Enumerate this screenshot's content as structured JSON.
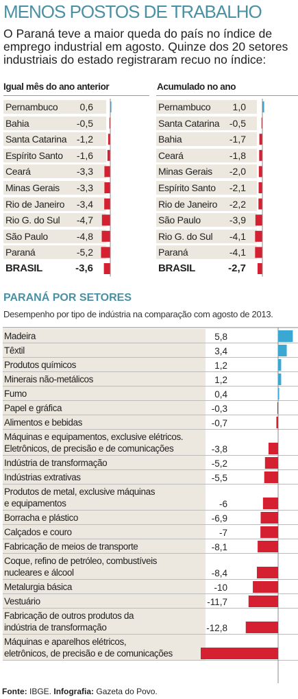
{
  "header": {
    "title": "MENOS POSTOS DE TRABALHO",
    "intro": "O Paraná teve a maior queda do país no índice de emprego industrial em agosto. Quinze dos 20 setores industriais do estado registraram recuo no índice:"
  },
  "colors": {
    "positive": "#3ba7d3",
    "negative": "#d42031",
    "accent": "#4a90a4",
    "shade": "#ece8df"
  },
  "chart_data": [
    {
      "type": "bar",
      "title": "Igual mês do ano anterior",
      "categories": [
        "Pernambuco",
        "Bahia",
        "Santa Catarina",
        "Espírito Santo",
        "Ceará",
        "Minas Gerais",
        "Rio de Janeiro",
        "Rio G. do Sul",
        "São Paulo",
        "Paraná",
        "BRASIL"
      ],
      "value_labels": [
        "0,6",
        "-0,5",
        "-1,2",
        "-1,6",
        "-3,3",
        "-3,3",
        "-3,4",
        "-4,7",
        "-4,8",
        "-5,2",
        "-3,6"
      ],
      "values": [
        0.6,
        -0.5,
        -1.2,
        -1.6,
        -3.3,
        -3.3,
        -3.4,
        -4.7,
        -4.8,
        -5.2,
        -3.6
      ]
    },
    {
      "type": "bar",
      "title": "Acumulado no ano",
      "categories": [
        "Pernambuco",
        "Santa Catarina",
        "Bahia",
        "Ceará",
        "Minas Gerais",
        "Espírito Santo",
        "Rio de Janeiro",
        "São Paulo",
        "Rio G. do Sul",
        "Paraná",
        "BRASIL"
      ],
      "value_labels": [
        "1,0",
        "-0,5",
        "-1,7",
        "-1,8",
        "-2,0",
        "-2,1",
        "-2,2",
        "-3,9",
        "-4,1",
        "-4,1",
        "-2,7"
      ],
      "values": [
        1.0,
        -0.5,
        -1.7,
        -1.8,
        -2.0,
        -2.1,
        -2.2,
        -3.9,
        -4.1,
        -4.1,
        -2.7
      ]
    },
    {
      "type": "bar",
      "title": "PARANÁ POR SETORES",
      "subtitle": "Desempenho por tipo de indústria na comparação com agosto de 2013.",
      "categories": [
        "Madeira",
        "Têxtil",
        "Produtos químicos",
        "Minerais não-metálicos",
        "Fumo",
        "Papel e gráfica",
        "Alimentos e bebidas",
        "Máquinas e equipamentos, exclusive elétricos.\nEletrônicos, de precisão e de comunicações",
        "Indústria de transformação",
        "Indústrias extrativas",
        "Produtos de metal, exclusive máquinas\ne equipamentos",
        "Borracha e plástico",
        "Calçados e couro",
        "Fabricação de meios de transporte",
        "Coque, refino de petróleo, combustíveis\nnucleares e álcool",
        "Metalurgia básica",
        "Vestuário",
        "Fabricação de outros produtos da\nindústria de transformação",
        "Máquinas e aparelhos elétricos,\neletrônicos, de precisão e de comunicações"
      ],
      "value_labels": [
        "5,8",
        "3,4",
        "1,2",
        "1,2",
        "0,4",
        "-0,3",
        "-0,7",
        "-3,8",
        "-5,2",
        "-5,5",
        "-6",
        "-6,9",
        "-7",
        "-8,1",
        "-8,4",
        "-10",
        "-11,7",
        "-12,8",
        "-30,6"
      ],
      "values": [
        5.8,
        3.4,
        1.2,
        1.2,
        0.4,
        -0.3,
        -0.7,
        -3.8,
        -5.2,
        -5.5,
        -6,
        -6.9,
        -7,
        -8.1,
        -8.4,
        -10,
        -11.7,
        -12.8,
        -30.6
      ]
    }
  ],
  "footer": {
    "source_label": "Fonte:",
    "source": "IBGE.",
    "graphic_label": "Infografia:",
    "graphic": "Gazeta do Povo."
  }
}
